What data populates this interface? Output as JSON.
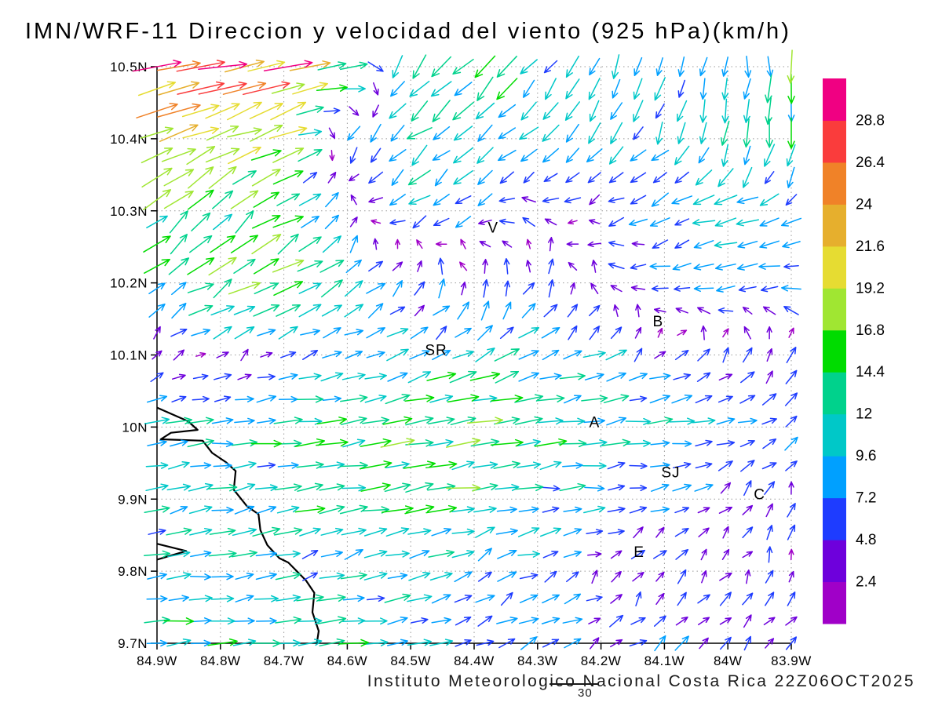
{
  "title": "IMN/WRF-11 Direccion y velocidad del viento (925 hPa)(km/h)",
  "footer": {
    "text": "Instituto Meteorologico Nacional Costa Rica 22Z06OCT2025",
    "number": "30"
  },
  "axes": {
    "lat": {
      "values": [
        10.5,
        10.4,
        10.3,
        10.2,
        10.1,
        10,
        9.9,
        9.8,
        9.7
      ],
      "labels": [
        "10.5N",
        "10.4N",
        "10.3N",
        "10.2N",
        "10.1N",
        "10N",
        "9.9N",
        "9.8N",
        "9.7N"
      ]
    },
    "lon": {
      "values": [
        84.9,
        84.8,
        84.7,
        84.6,
        84.5,
        84.4,
        84.3,
        84.2,
        84.1,
        84,
        83.9
      ],
      "labels": [
        "84.9W",
        "84.8W",
        "84.7W",
        "84.6W",
        "84.5W",
        "84.4W",
        "84.3W",
        "84.2W",
        "84.1W",
        "84W",
        "83.9W"
      ]
    }
  },
  "colorbar": {
    "labels": [
      "28.8",
      "26.4",
      "24",
      "21.6",
      "19.2",
      "16.8",
      "14.4",
      "12",
      "9.6",
      "7.2",
      "4.8",
      "2.4"
    ],
    "levels_ascending": [
      2.4,
      4.8,
      7.2,
      9.6,
      12,
      14.4,
      16.8,
      19.2,
      21.6,
      24,
      26.4,
      28.8
    ],
    "colors": [
      "#A000C8",
      "#6E00DC",
      "#1E3CFF",
      "#00A0FF",
      "#00C8C8",
      "#00D28C",
      "#00DC00",
      "#A0E632",
      "#E6DC32",
      "#E6AF2D",
      "#F08228",
      "#FA3C3C",
      "#F00082"
    ]
  },
  "cities": [
    {
      "label": "V",
      "lat": 10.27,
      "lon": 84.37
    },
    {
      "label": "B",
      "lat": 10.14,
      "lon": 84.11
    },
    {
      "label": "SR",
      "lat": 10.1,
      "lon": 84.46
    },
    {
      "label": "A",
      "lat": 10.0,
      "lon": 84.21
    },
    {
      "label": "SJ",
      "lat": 9.93,
      "lon": 84.09
    },
    {
      "label": "C",
      "lat": 9.9,
      "lon": 83.95
    },
    {
      "label": "E",
      "lat": 9.82,
      "lon": 84.14
    }
  ],
  "coastline": {
    "main": [
      [
        10.027,
        84.9
      ],
      [
        10.008,
        84.851
      ],
      [
        9.996,
        84.836
      ],
      [
        9.992,
        84.878
      ],
      [
        9.983,
        84.894
      ],
      [
        9.981,
        84.828
      ],
      [
        9.964,
        84.813
      ],
      [
        9.951,
        84.791
      ],
      [
        9.939,
        84.776
      ],
      [
        9.913,
        84.779
      ],
      [
        9.89,
        84.758
      ],
      [
        9.879,
        84.74
      ],
      [
        9.857,
        84.737
      ],
      [
        9.836,
        84.726
      ],
      [
        9.818,
        84.707
      ],
      [
        9.812,
        84.693
      ],
      [
        9.787,
        84.665
      ],
      [
        9.77,
        84.652
      ],
      [
        9.743,
        84.655
      ],
      [
        9.717,
        84.645
      ],
      [
        9.7,
        84.648
      ]
    ],
    "peninsula": [
      [
        9.838,
        84.9
      ],
      [
        9.828,
        84.854
      ],
      [
        9.816,
        84.9
      ]
    ]
  },
  "chart_data": {
    "type": "quiver",
    "title": "IMN/WRF-11 Direccion y velocidad del viento (925 hPa)(km/h)",
    "units": "km/h",
    "level": "925 hPa",
    "lon_range_w": [
      84.9,
      83.9
    ],
    "lat_range_n": [
      9.7,
      10.5
    ],
    "grid_on": true,
    "legend_position": "right-colorbar",
    "speed_levels": [
      2.4,
      4.8,
      7.2,
      9.6,
      12,
      14.4,
      16.8,
      19.2,
      21.6,
      24,
      26.4,
      28.8
    ],
    "control_lon_w": [
      84.9,
      84.8,
      84.7,
      84.6,
      84.5,
      84.4,
      84.3,
      84.2,
      84.1,
      84.0,
      83.9
    ],
    "control_lat_n": [
      10.5,
      10.4,
      10.3,
      10.2,
      10.1,
      10.0,
      9.9,
      9.8,
      9.7
    ],
    "u": [
      [
        26,
        28,
        24,
        16,
        -8,
        -9,
        -6,
        -4,
        -3,
        -1,
        0
      ],
      [
        18,
        22,
        16,
        -4,
        -9,
        -9,
        -7,
        -5,
        -4,
        -2,
        -1
      ],
      [
        12,
        10,
        14,
        2,
        -8,
        -6,
        -4,
        -5,
        -7,
        -9,
        -8
      ],
      [
        10,
        12,
        14,
        8,
        4,
        1,
        3,
        -2,
        -6,
        -8,
        -8
      ],
      [
        2,
        3,
        5,
        8,
        8,
        9,
        8,
        7,
        4,
        3,
        3
      ],
      [
        10,
        11,
        12,
        14,
        17,
        16,
        14,
        12,
        11,
        8,
        5
      ],
      [
        10,
        10,
        11,
        12,
        15,
        13,
        10,
        8,
        6,
        3,
        1
      ],
      [
        10,
        10,
        9,
        9,
        8,
        7,
        6,
        4,
        2,
        2,
        2
      ],
      [
        12,
        12,
        12,
        11,
        10,
        8,
        7,
        5,
        4,
        3,
        3
      ]
    ],
    "v": [
      [
        6,
        5,
        6,
        3,
        -10,
        -9,
        -8,
        -9,
        -9,
        -10,
        -14
      ],
      [
        8,
        7,
        9,
        -6,
        -7,
        -8,
        -7,
        -7,
        -8,
        -10,
        -13
      ],
      [
        9,
        10,
        8,
        4,
        -5,
        -4,
        2,
        -2,
        -3,
        -2,
        -3
      ],
      [
        6,
        7,
        7,
        6,
        6,
        7,
        5,
        3,
        0,
        -1,
        -1
      ],
      [
        3,
        2,
        2,
        2,
        4,
        5,
        4,
        3,
        3,
        4,
        6
      ],
      [
        2,
        1,
        1,
        2,
        2,
        2,
        2,
        1,
        1,
        2,
        3
      ],
      [
        2,
        2,
        2,
        2,
        2,
        2,
        1,
        1,
        2,
        3,
        5
      ],
      [
        1,
        1,
        2,
        2,
        3,
        4,
        3,
        2,
        3,
        4,
        4
      ],
      [
        1,
        1,
        1,
        1,
        2,
        3,
        4,
        4,
        4,
        4,
        4
      ]
    ]
  }
}
